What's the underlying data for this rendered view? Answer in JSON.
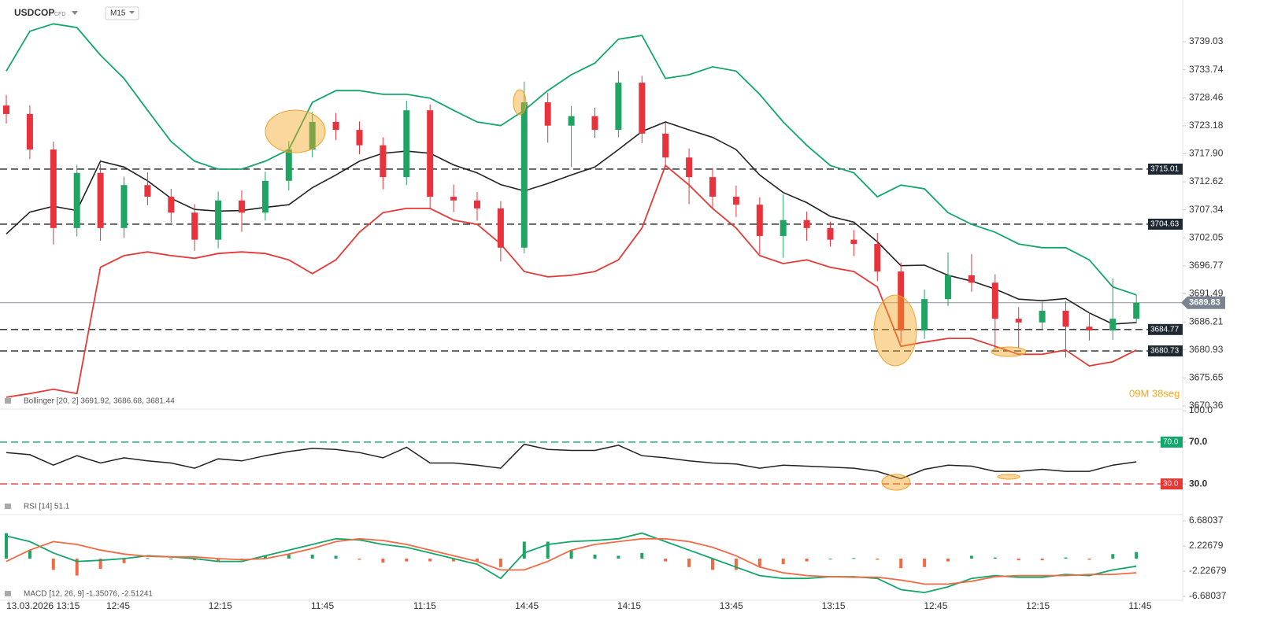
{
  "header": {
    "symbol": "USDCOP",
    "badge": "CFD",
    "timeframe": "M15"
  },
  "x_axis": {
    "labels": [
      "13.03.2026 13:15",
      "12:45",
      "12:15",
      "11:45",
      "11:15",
      "14:45",
      "14:15",
      "13:45",
      "13:15",
      "12:45",
      "12:15",
      "11:45"
    ]
  },
  "chart_data": [
    {
      "type": "candlestick",
      "legend": "Bollinger [20, 2] 3691.92, 3686.68, 3681.44",
      "countdown": "09M 38seg",
      "up_color": "#1fa463",
      "down_color": "#e8323c",
      "open": [
        3727.0,
        3725.4,
        3718.7,
        3703.9,
        3714.3,
        3703.9,
        3712.0,
        3709.8,
        3706.8,
        3701.7,
        3709.1,
        3706.8,
        3712.8,
        3718.7,
        3723.9,
        3722.4,
        3719.5,
        3713.5,
        3726.1,
        3709.8,
        3709.1,
        3707.6,
        3700.2,
        3727.6,
        3723.2,
        3725.0,
        3722.4,
        3731.3,
        3721.7,
        3717.2,
        3713.5,
        3709.8,
        3708.3,
        3702.4,
        3705.4,
        3703.9,
        3701.7,
        3700.9,
        3695.7,
        3684.6,
        3690.5,
        3695.0,
        3693.6,
        3686.8,
        3686.1,
        3688.3,
        3685.3,
        3684.6,
        3686.8
      ],
      "high": [
        3729.0,
        3727.0,
        3720.2,
        3715.8,
        3716.0,
        3713.6,
        3714.4,
        3711.3,
        3708.4,
        3710.8,
        3711.0,
        3714.5,
        3720.3,
        3725.8,
        3725.6,
        3724.0,
        3721.0,
        3727.9,
        3727.2,
        3712.1,
        3710.7,
        3709.0,
        3731.5,
        3729.4,
        3726.9,
        3726.6,
        3733.5,
        3732.6,
        3723.8,
        3718.9,
        3715.2,
        3711.9,
        3709.7,
        3710.2,
        3707.0,
        3705.1,
        3703.5,
        3703.0,
        3697.4,
        3692.3,
        3699.3,
        3699.0,
        3695.2,
        3689.0,
        3690.0,
        3690.1,
        3688.0,
        3694.4,
        3691.3
      ],
      "low": [
        3723.6,
        3716.9,
        3700.8,
        3702.3,
        3701.5,
        3702.1,
        3708.2,
        3704.9,
        3699.6,
        3700.1,
        3703.2,
        3705.3,
        3711.0,
        3717.2,
        3720.5,
        3717.8,
        3711.2,
        3712.0,
        3707.5,
        3706.9,
        3705.3,
        3697.6,
        3699.1,
        3720.0,
        3715.4,
        3720.9,
        3721.0,
        3719.9,
        3715.6,
        3708.4,
        3707.6,
        3706.0,
        3699.0,
        3698.3,
        3701.5,
        3700.4,
        3698.6,
        3693.9,
        3682.3,
        3683.0,
        3689.2,
        3691.9,
        3681.0,
        3681.2,
        3684.6,
        3679.5,
        3682.7,
        3682.8,
        3685.9
      ],
      "close": [
        3725.4,
        3718.7,
        3703.9,
        3714.3,
        3703.9,
        3712.0,
        3709.8,
        3706.8,
        3701.7,
        3709.1,
        3706.8,
        3712.8,
        3718.7,
        3723.9,
        3722.4,
        3719.5,
        3713.5,
        3726.1,
        3709.8,
        3709.1,
        3707.6,
        3700.2,
        3727.6,
        3723.2,
        3725.0,
        3722.4,
        3731.3,
        3721.7,
        3717.2,
        3713.5,
        3709.8,
        3708.3,
        3702.4,
        3705.4,
        3703.9,
        3701.7,
        3700.9,
        3695.7,
        3684.6,
        3690.5,
        3695.0,
        3693.6,
        3686.8,
        3686.1,
        3688.3,
        3685.3,
        3684.6,
        3686.8,
        3689.8
      ],
      "series": [
        {
          "color": "#12a66a",
          "values": [
            3733.5,
            3741.0,
            3742.4,
            3741.7,
            3736.5,
            3732.1,
            3726.1,
            3720.2,
            3716.5,
            3715.0,
            3715.0,
            3716.5,
            3718.7,
            3727.6,
            3729.8,
            3729.8,
            3729.1,
            3729.1,
            3728.4,
            3726.1,
            3723.9,
            3723.2,
            3726.1,
            3729.8,
            3732.8,
            3735.0,
            3739.5,
            3740.2,
            3732.1,
            3732.8,
            3734.3,
            3733.5,
            3729.1,
            3723.9,
            3719.5,
            3715.7,
            3714.3,
            3709.8,
            3712.0,
            3711.3,
            3706.8,
            3704.6,
            3703.1,
            3700.9,
            3700.2,
            3700.2,
            3697.9,
            3692.8,
            3691.3
          ]
        },
        {
          "color": "#222222",
          "values": [
            3702.8,
            3706.9,
            3708.0,
            3707.2,
            3716.5,
            3715.4,
            3712.8,
            3709.5,
            3707.4,
            3707.1,
            3707.2,
            3707.8,
            3708.3,
            3711.5,
            3713.9,
            3716.5,
            3718.0,
            3718.4,
            3718.0,
            3715.8,
            3714.3,
            3712.1,
            3710.9,
            3712.3,
            3713.9,
            3715.4,
            3718.7,
            3722.1,
            3723.9,
            3722.4,
            3721.0,
            3718.7,
            3713.9,
            3710.6,
            3708.7,
            3706.1,
            3705.0,
            3701.3,
            3696.8,
            3696.9,
            3695.0,
            3693.9,
            3692.4,
            3690.5,
            3690.2,
            3690.6,
            3687.9,
            3685.8,
            3686.1
          ]
        },
        {
          "color": "#e53935",
          "values": [
            3672.0,
            3672.7,
            3673.5,
            3672.7,
            3696.5,
            3698.7,
            3699.4,
            3698.7,
            3698.2,
            3699.1,
            3699.4,
            3699.1,
            3697.9,
            3695.3,
            3697.9,
            3703.1,
            3706.8,
            3707.6,
            3707.6,
            3705.4,
            3704.6,
            3700.9,
            3695.7,
            3694.7,
            3695.0,
            3695.7,
            3697.9,
            3703.9,
            3715.7,
            3712.0,
            3707.6,
            3703.9,
            3698.7,
            3697.2,
            3697.9,
            3696.5,
            3695.7,
            3692.8,
            3681.6,
            3682.4,
            3683.1,
            3683.1,
            3681.6,
            3680.1,
            3680.1,
            3680.9,
            3677.9,
            3678.7,
            3680.9
          ]
        }
      ],
      "levels": [
        3715.01,
        3704.63,
        3684.77,
        3680.73
      ],
      "current_price": 3689.83,
      "ylim": [
        3670.06,
        3746.89
      ],
      "yticks": [
        3739.03,
        3733.74,
        3728.46,
        3723.18,
        {
          "value": 3717.9,
          "label": "3717.90"
        },
        3712.62,
        3707.34,
        3702.05,
        3696.77,
        3691.49,
        3686.21,
        3680.93,
        3675.65,
        3670.36
      ]
    },
    {
      "type": "line",
      "legend": "RSI [14] 51.1",
      "series": [
        {
          "color": "#222222",
          "values": [
            60,
            58,
            48,
            57,
            50,
            55,
            52,
            50,
            45,
            54,
            52,
            57,
            61,
            64,
            63,
            60,
            55,
            65,
            50,
            50,
            48,
            45,
            68,
            63,
            62,
            62,
            67,
            57,
            55,
            52,
            50,
            49,
            45,
            48,
            47,
            46,
            45,
            42,
            35,
            44,
            48,
            47,
            42,
            42,
            44,
            42,
            42,
            48,
            51.1
          ]
        }
      ],
      "levels": [
        {
          "value": 70,
          "label": "70.0",
          "color": "#12a66a"
        },
        {
          "value": 30,
          "label": "30.0",
          "color": "#e53935"
        }
      ],
      "ylim": [
        0,
        100
      ],
      "yticks": [
        {
          "value": 100,
          "label": "100.0"
        },
        {
          "value": 70,
          "label": "70.0"
        },
        {
          "value": 30,
          "label": "30.0"
        }
      ]
    },
    {
      "type": "macd",
      "legend": "MACD [12, 26, 9] -1.35076, -2.51241",
      "series": [
        {
          "color": "#12a66a",
          "values": [
            4,
            3,
            1,
            -0.5,
            -0.3,
            0,
            0.5,
            0.3,
            0,
            -0.5,
            -0.5,
            0.5,
            1.5,
            2.5,
            3.5,
            3.3,
            2.5,
            2,
            1,
            0,
            -1,
            -3.5,
            1,
            2.5,
            3,
            3.2,
            3.5,
            4.5,
            3,
            1.5,
            0,
            -1.5,
            -3,
            -3.5,
            -3.5,
            -3.2,
            -3.2,
            -3.5,
            -5.5,
            -6,
            -5,
            -3.5,
            -3,
            -3.3,
            -3.3,
            -2.8,
            -3,
            -2,
            -1.35
          ]
        },
        {
          "color": "#f06a45",
          "values": [
            -0.5,
            1.5,
            3,
            2.5,
            1.5,
            0.8,
            0.4,
            0.3,
            0.3,
            0,
            -0.2,
            0,
            0.8,
            1.8,
            3,
            3.5,
            3.2,
            2.5,
            1.5,
            0.5,
            -0.5,
            -2,
            -2,
            -0.5,
            1.5,
            2.5,
            3,
            3.5,
            3.5,
            3,
            2,
            0.5,
            -1.5,
            -2.5,
            -3,
            -3.2,
            -3.3,
            -3.3,
            -3.8,
            -4.5,
            -4.5,
            -4,
            -3.2,
            -3,
            -3,
            -3,
            -2.8,
            -2.8,
            -2.51
          ]
        }
      ],
      "histogram": [
        4.5,
        1.5,
        -2,
        -3,
        -1.8,
        -0.8,
        0.1,
        0,
        -0.3,
        -0.5,
        -0.3,
        0.5,
        0.7,
        0.7,
        0.5,
        -0.2,
        -0.7,
        -0.5,
        -0.5,
        -0.5,
        -0.5,
        -1.5,
        3,
        3,
        1.5,
        0.7,
        0.5,
        1,
        -0.5,
        -1.5,
        -2,
        -2,
        -1.5,
        -1,
        -0.5,
        0,
        0.1,
        -0.2,
        -1.7,
        -1.5,
        -0.5,
        0.5,
        0.2,
        -0.3,
        -0.3,
        0.2,
        -0.2,
        0.8,
        1.16
      ],
      "hist_colors": [
        "#1fa463",
        "#f06a45"
      ],
      "ylim": [
        -7.65,
        7.65
      ],
      "yticks": [
        6.68037,
        2.22679,
        -2.22679,
        -6.68037
      ]
    }
  ]
}
